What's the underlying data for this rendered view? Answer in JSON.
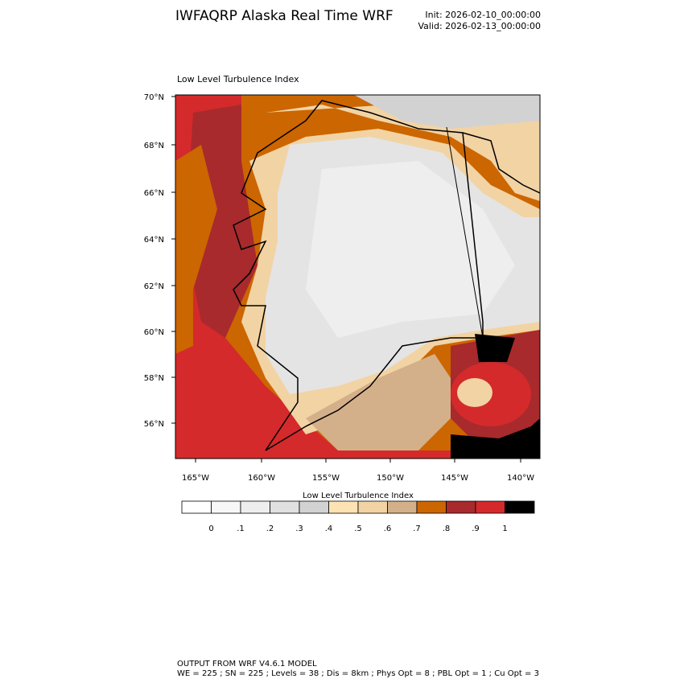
{
  "header": {
    "title": "IWFAQRP Alaska Real Time WRF",
    "init": "Init: 2026-02-10_00:00:00",
    "valid": "Valid: 2026-02-13_00:00:00"
  },
  "map": {
    "label": "Low Level Turbulence Index",
    "lat_labels": [
      "70°N",
      "68°N",
      "66°N",
      "64°N",
      "62°N",
      "60°N",
      "58°N",
      "56°N"
    ],
    "lon_labels": [
      "165°W",
      "160°W",
      "155°W",
      "150°W",
      "145°W",
      "140°W"
    ]
  },
  "colorbar": {
    "title": "Low Level Turbulence Index",
    "labels": [
      "0",
      ".1",
      ".2",
      ".3",
      ".4",
      ".5",
      ".6",
      ".7",
      ".8",
      ".9",
      "1"
    ],
    "colors": [
      "#ffffff",
      "#f7f7f7",
      "#eeeeee",
      "#e0e0e0",
      "#d2d2d2",
      "#fde3b4",
      "#f2d3a4",
      "#d4b08a",
      "#cc6600",
      "#a82a2c",
      "#d42a2b",
      "#000000"
    ]
  },
  "footer": {
    "line1": "OUTPUT FROM WRF V4.6.1 MODEL",
    "line2": "WE = 225 ; SN = 225 ; Levels = 38 ; Dis = 8km ; Phys Opt = 8 ; PBL Opt = 1 ; Cu Opt = 3"
  }
}
